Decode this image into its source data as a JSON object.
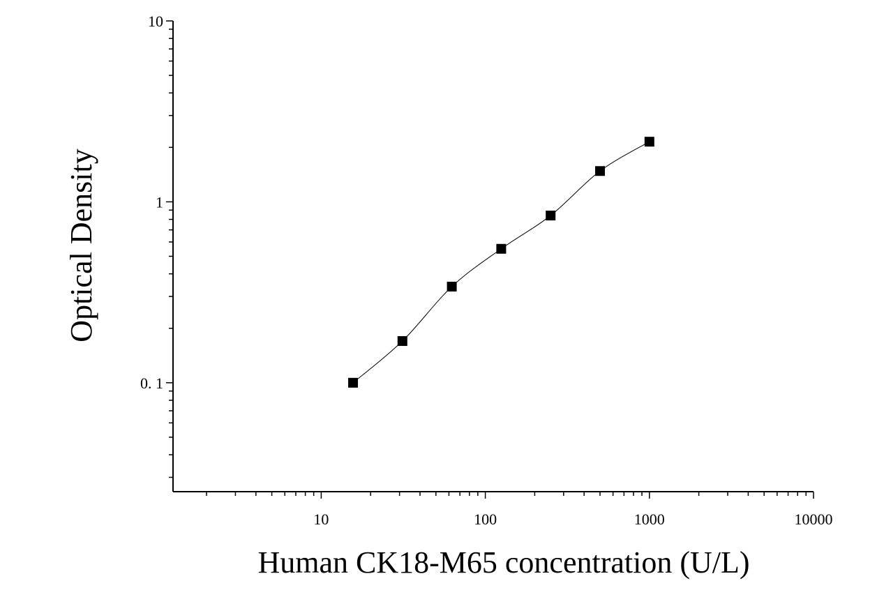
{
  "chart_data": {
    "type": "scatter",
    "xlabel": "Human CK18-M65 concentration (U/L)",
    "ylabel": "Optical Density",
    "x_scale": "log",
    "y_scale": "log",
    "xlim": [
      1.25,
      10000
    ],
    "ylim": [
      0.025,
      10
    ],
    "x_tick_labels": [
      {
        "value": 10,
        "label": "10"
      },
      {
        "value": 100,
        "label": "100"
      },
      {
        "value": 1000,
        "label": "1000"
      },
      {
        "value": 10000,
        "label": "10000"
      }
    ],
    "y_tick_labels": [
      {
        "value": 0.1,
        "label": "0. 1"
      },
      {
        "value": 1,
        "label": "1"
      },
      {
        "value": 10,
        "label": "10"
      }
    ],
    "grid": false,
    "series": [
      {
        "marker": "square",
        "x": [
          15.63,
          31.25,
          62.5,
          125,
          250,
          500,
          1000
        ],
        "y": [
          0.1,
          0.17,
          0.34,
          0.55,
          0.84,
          1.48,
          2.15
        ]
      }
    ],
    "fit_curve": true,
    "colors": {
      "marker": "#000000",
      "axis": "#000000",
      "background": "#ffffff"
    }
  }
}
